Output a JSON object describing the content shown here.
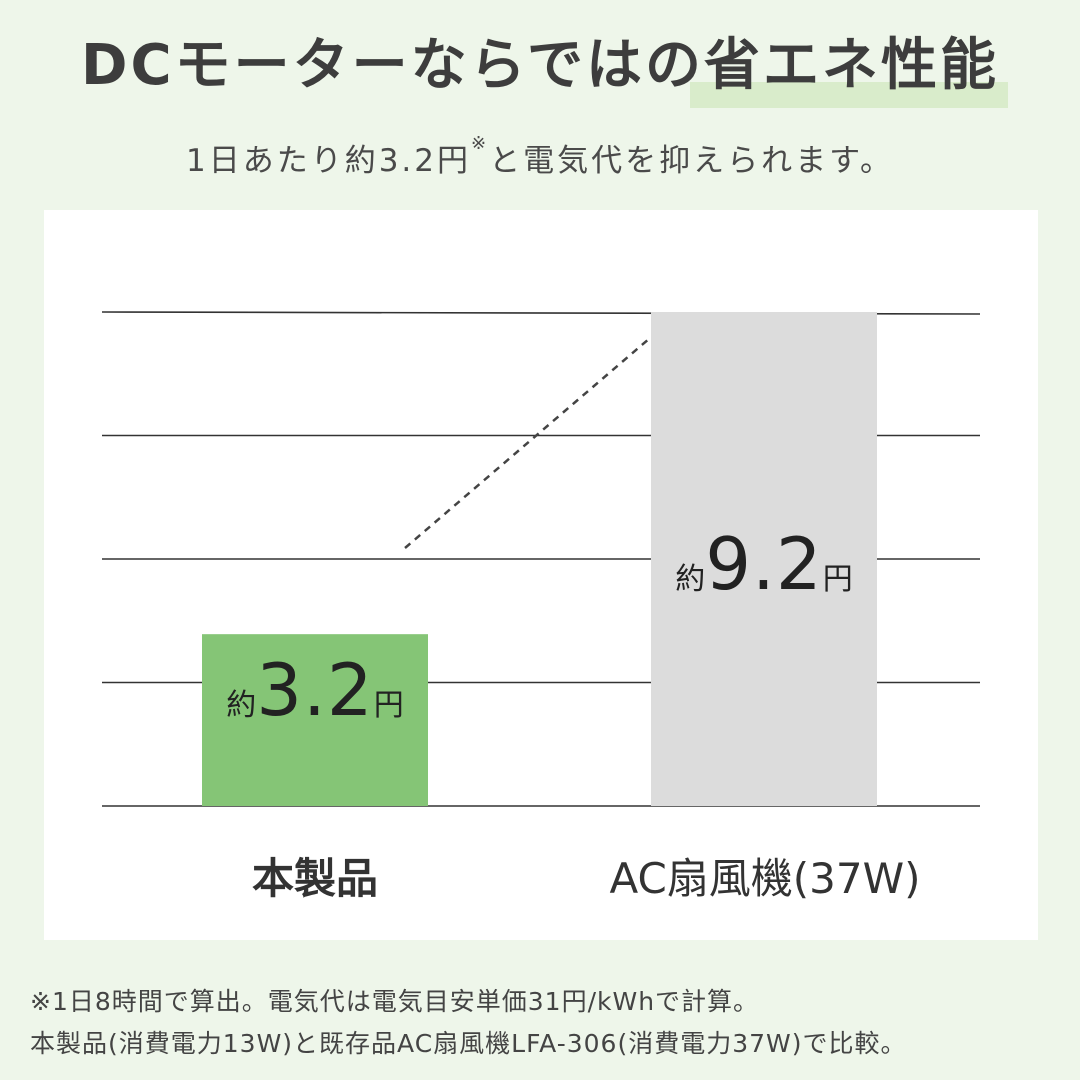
{
  "header": {
    "title": "DCモーターならではの省エネ性能",
    "subtitle_main": "1日あたり約3.2円",
    "subtitle_mark": "※",
    "subtitle_rest": "と電気代を抑えられます。"
  },
  "chart_data": {
    "type": "bar",
    "categories": [
      "本製品",
      "AC扇風機(37W)"
    ],
    "values": [
      3.2,
      9.2
    ],
    "unit": "円",
    "value_labels": [
      {
        "prefix": "約",
        "number": "3.2",
        "suffix": "円"
      },
      {
        "prefix": "約",
        "number": "9.2",
        "suffix": "円"
      }
    ],
    "bar_colors": [
      "#85c576",
      "#dcdcdc"
    ],
    "ylim": [
      0,
      9.2
    ],
    "gridlines": 5,
    "grid": true,
    "legend": "none"
  },
  "footnotes": [
    "※1日8時間で算出。電気代は電気目安単価31円/kWhで計算。",
    "本製品(消費電力13W)と既存品AC扇風機LFA-306(消費電力37W)で比較。"
  ]
}
